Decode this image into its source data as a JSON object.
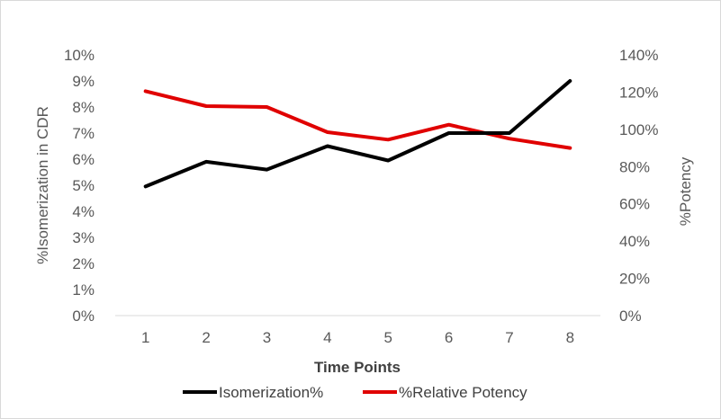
{
  "chart_data": {
    "type": "line",
    "xlabel": "Time Points",
    "ylabel_left": "%Isomerization in CDR",
    "ylabel_right": "%Potency",
    "categories": [
      "1",
      "2",
      "3",
      "4",
      "5",
      "6",
      "7",
      "8"
    ],
    "y_left": {
      "lim": [
        0,
        10
      ],
      "ticks": [
        0,
        1,
        2,
        3,
        4,
        5,
        6,
        7,
        8,
        9,
        10
      ],
      "tick_labels": [
        "0%",
        "1%",
        "2%",
        "3%",
        "4%",
        "5%",
        "6%",
        "7%",
        "8%",
        "9%",
        "10%"
      ]
    },
    "y_right": {
      "lim": [
        0,
        140
      ],
      "ticks": [
        0,
        20,
        40,
        60,
        80,
        100,
        120,
        140
      ],
      "tick_labels": [
        "0%",
        "20%",
        "40%",
        "60%",
        "80%",
        "100%",
        "120%",
        "140%"
      ]
    },
    "series": [
      {
        "name": "Isomerization%",
        "axis": "left",
        "color": "#000000",
        "values": [
          4.95,
          5.9,
          5.6,
          6.5,
          5.95,
          7.0,
          7.0,
          9.0
        ]
      },
      {
        "name": "%Relative Potency",
        "axis": "right",
        "color": "#e00000",
        "values": [
          120.5,
          112.5,
          112.0,
          98.5,
          94.5,
          102.5,
          95.0,
          90.0
        ]
      }
    ],
    "grid": false,
    "legend": "bottom"
  }
}
